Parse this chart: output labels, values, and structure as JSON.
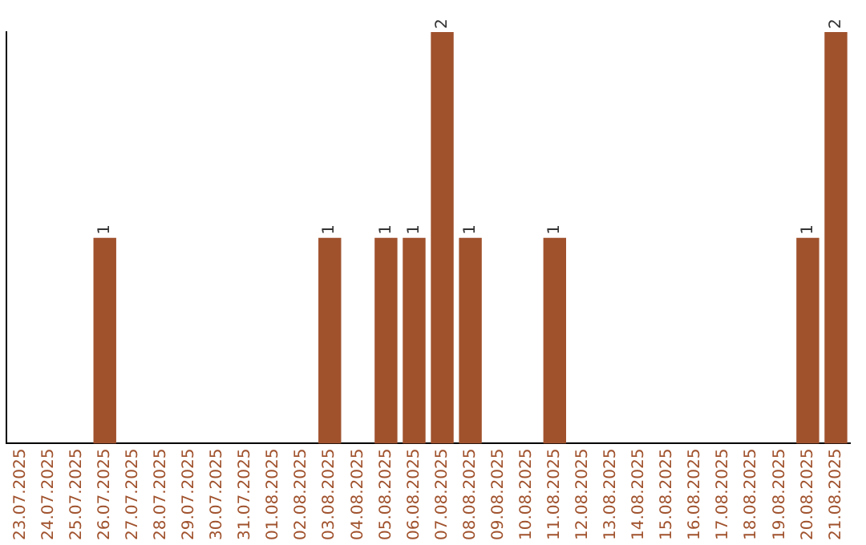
{
  "chart_data": {
    "type": "bar",
    "categories": [
      "23.07.2025",
      "24.07.2025",
      "25.07.2025",
      "26.07.2025",
      "27.07.2025",
      "28.07.2025",
      "29.07.2025",
      "30.07.2025",
      "31.07.2025",
      "01.08.2025",
      "02.08.2025",
      "03.08.2025",
      "04.08.2025",
      "05.08.2025",
      "06.08.2025",
      "07.08.2025",
      "08.08.2025",
      "09.08.2025",
      "10.08.2025",
      "11.08.2025",
      "12.08.2025",
      "13.08.2025",
      "14.08.2025",
      "15.08.2025",
      "16.08.2025",
      "17.08.2025",
      "18.08.2025",
      "19.08.2025",
      "20.08.2025",
      "21.08.2025"
    ],
    "values": [
      0,
      0,
      0,
      1,
      0,
      0,
      0,
      0,
      0,
      0,
      0,
      1,
      0,
      1,
      1,
      2,
      1,
      0,
      0,
      1,
      0,
      0,
      0,
      0,
      0,
      0,
      0,
      0,
      1,
      2
    ],
    "value_labels": [
      null,
      null,
      null,
      "1",
      null,
      null,
      null,
      null,
      null,
      null,
      null,
      "1",
      null,
      "1",
      "1",
      "2",
      "1",
      null,
      null,
      "1",
      null,
      null,
      null,
      null,
      null,
      null,
      null,
      null,
      "1",
      "2"
    ],
    "color": "#a0522d",
    "ylim": [
      0,
      2
    ],
    "tick_labels": "x",
    "grid": false,
    "legend": false
  }
}
